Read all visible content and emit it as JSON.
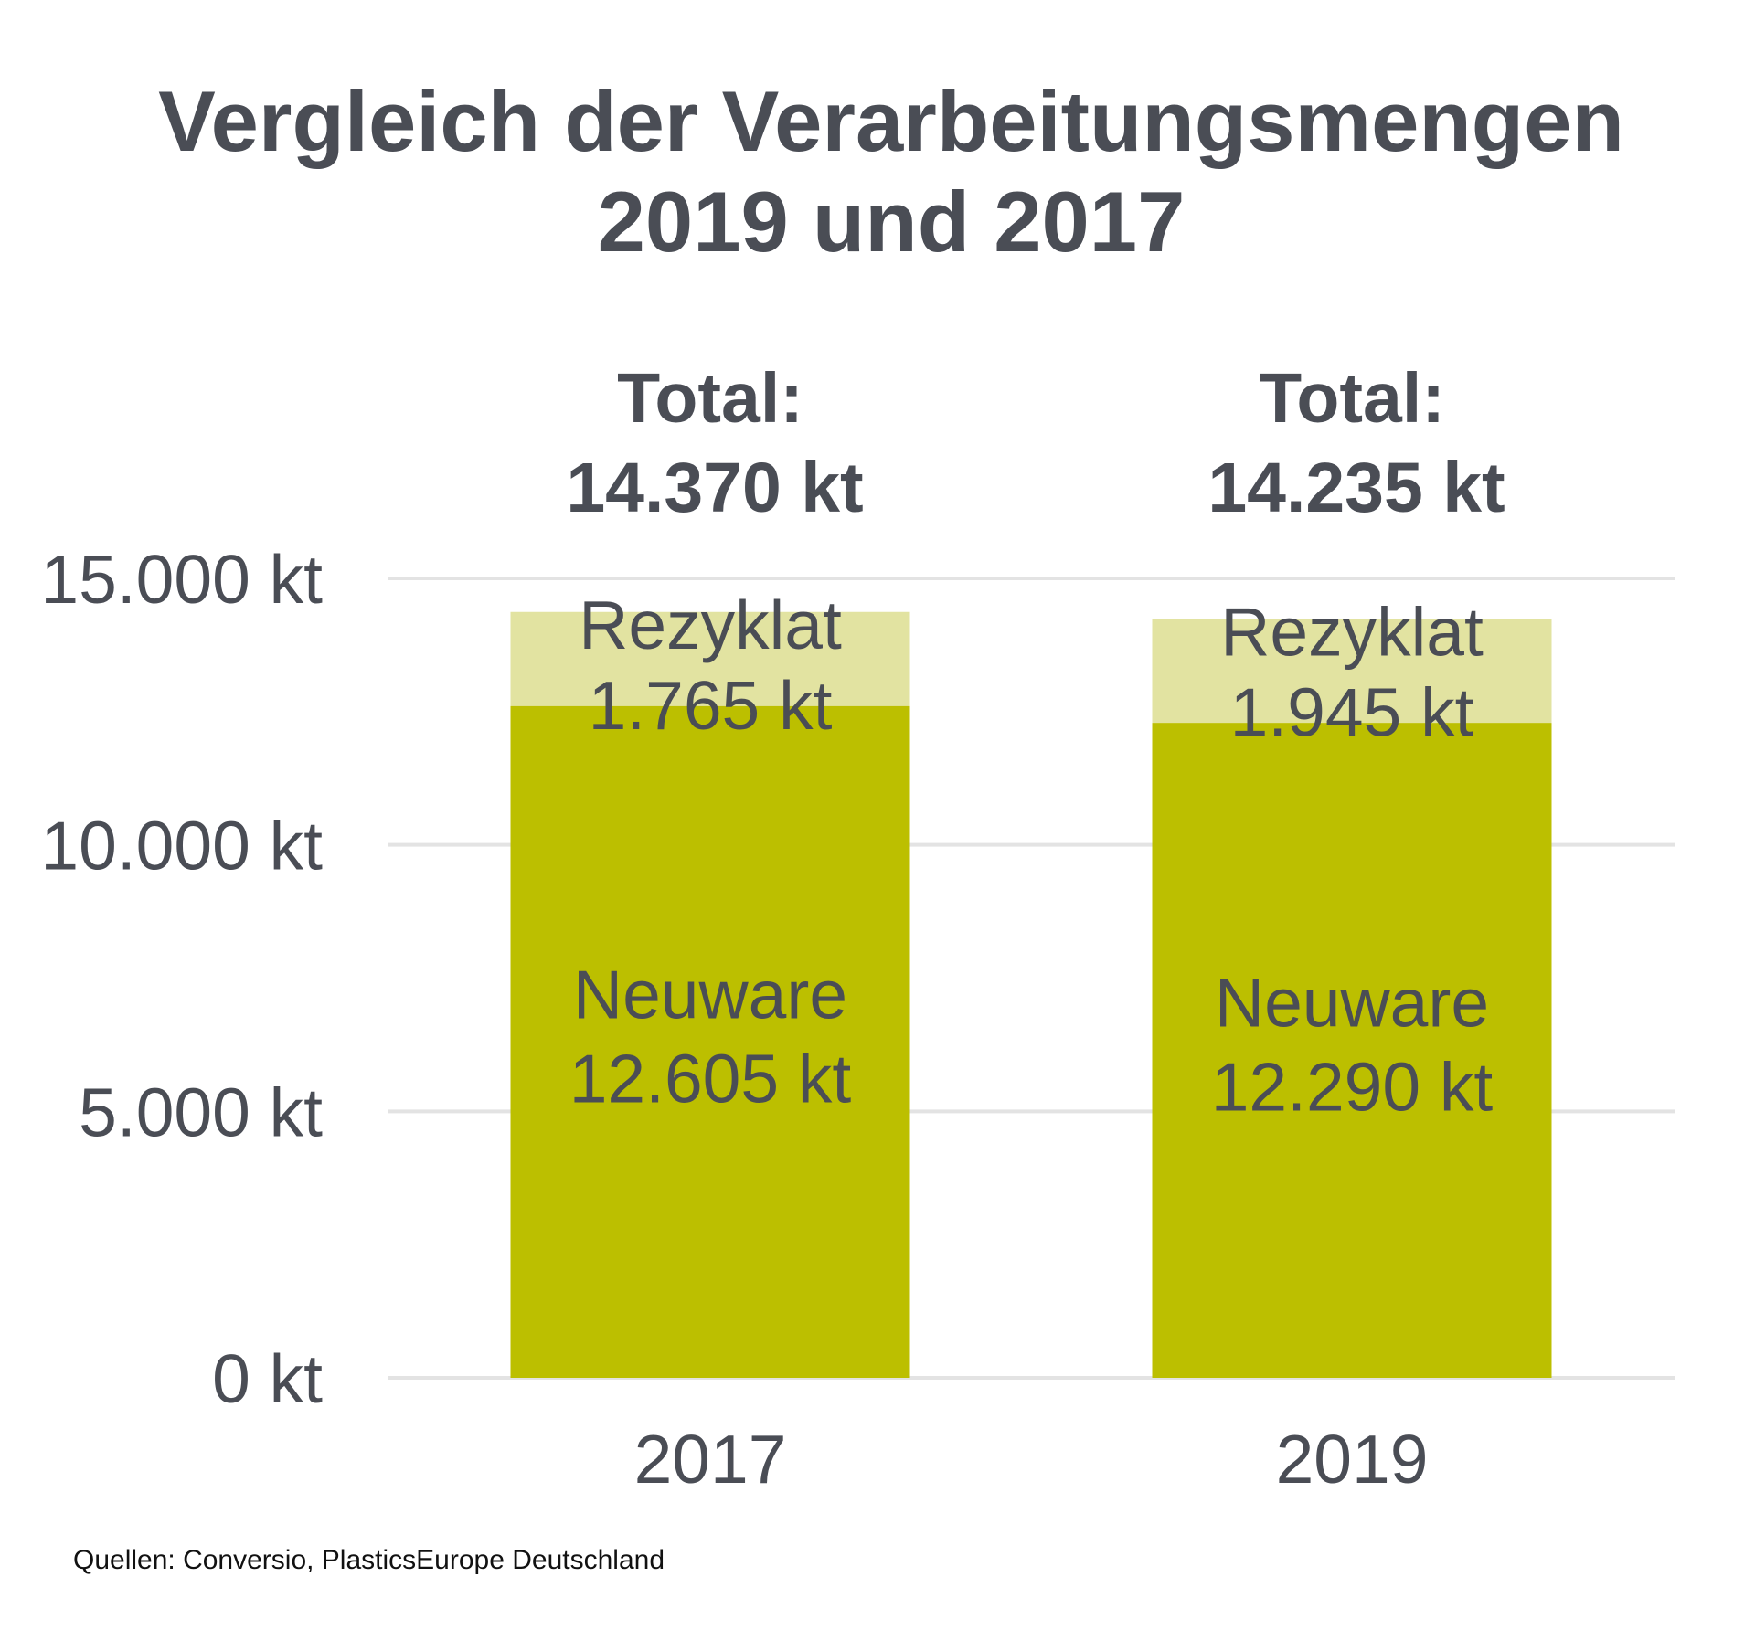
{
  "chart_data": {
    "type": "bar",
    "stacked": true,
    "title_lines": [
      "Vergleich der Verarbeitungsmengen",
      "2019 und 2017"
    ],
    "categories": [
      "2017",
      "2019"
    ],
    "series": [
      {
        "name": "Neuware",
        "values": [
          12605,
          12290
        ],
        "labels": [
          "12.605 kt",
          "12.290 kt"
        ]
      },
      {
        "name": "Rezyklat",
        "values": [
          1765,
          1945
        ],
        "labels": [
          "1.765 kt",
          "1.945 kt"
        ]
      }
    ],
    "totals": [
      {
        "label": "Total:",
        "value": 14370,
        "value_label": "14.370 kt"
      },
      {
        "label": "Total:",
        "value": 14235,
        "value_label": "14.235 kt"
      }
    ],
    "yticks": [
      {
        "value": 0,
        "label": "0 kt"
      },
      {
        "value": 5000,
        "label": "5.000 kt"
      },
      {
        "value": 10000,
        "label": "10.000 kt"
      },
      {
        "value": 15000,
        "label": "15.000 kt"
      }
    ],
    "ylim": [
      0,
      15000
    ],
    "grid": true,
    "legend": "none",
    "colors": {
      "Neuware": "#bcbf00",
      "Rezyklat": "#e2e3a1",
      "text": "#4a4d55",
      "grid": "#e3e3e3"
    },
    "source": "Quellen: Conversio, PlasticsEurope Deutschland"
  }
}
